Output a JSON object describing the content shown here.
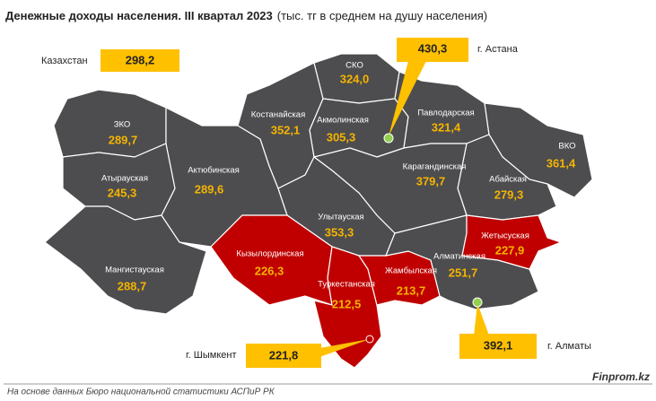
{
  "header": {
    "title": "Денежные доходы населения. III квартал 2023",
    "subtitle": "(тыс. тг в среднем на душу населения)"
  },
  "country": {
    "name": "Казахстан",
    "value": "298,2"
  },
  "regions": [
    {
      "name": "ЗКО",
      "value": "289,7",
      "color": "#4d4d4f"
    },
    {
      "name": "Атырауская",
      "value": "245,3",
      "color": "#4d4d4f"
    },
    {
      "name": "Мангистауская",
      "value": "288,7",
      "color": "#4d4d4f"
    },
    {
      "name": "Актюбинская",
      "value": "289,6",
      "color": "#4d4d4f"
    },
    {
      "name": "Костанайская",
      "value": "352,1",
      "color": "#4d4d4f"
    },
    {
      "name": "СКО",
      "value": "324,0",
      "color": "#4d4d4f"
    },
    {
      "name": "Акмолинская",
      "value": "305,3",
      "color": "#4d4d4f"
    },
    {
      "name": "Павлодарская",
      "value": "321,4",
      "color": "#4d4d4f"
    },
    {
      "name": "ВКО",
      "value": "361,4",
      "color": "#4d4d4f"
    },
    {
      "name": "Абайская",
      "value": "279,3",
      "color": "#4d4d4f"
    },
    {
      "name": "Карагандинская",
      "value": "379,7",
      "color": "#4d4d4f"
    },
    {
      "name": "Улытауская",
      "value": "353,3",
      "color": "#4d4d4f"
    },
    {
      "name": "Кызылординская",
      "value": "226,3",
      "color": "#c00000"
    },
    {
      "name": "Туркестанская",
      "value": "212,5",
      "color": "#c00000"
    },
    {
      "name": "Жамбылская",
      "value": "213,7",
      "color": "#c00000"
    },
    {
      "name": "Алматинская",
      "value": "251,7",
      "color": "#4d4d4f"
    },
    {
      "name": "Жетысуская",
      "value": "227,9",
      "color": "#c00000"
    }
  ],
  "cities": [
    {
      "name": "г. Астана",
      "value": "430,3"
    },
    {
      "name": "г. Алматы",
      "value": "392,1"
    },
    {
      "name": "г. Шымкент",
      "value": "221,8"
    }
  ],
  "footer": {
    "source": "На основе данных Бюро национальной статистики АСПиР РК",
    "brand": "Finprom.kz"
  }
}
